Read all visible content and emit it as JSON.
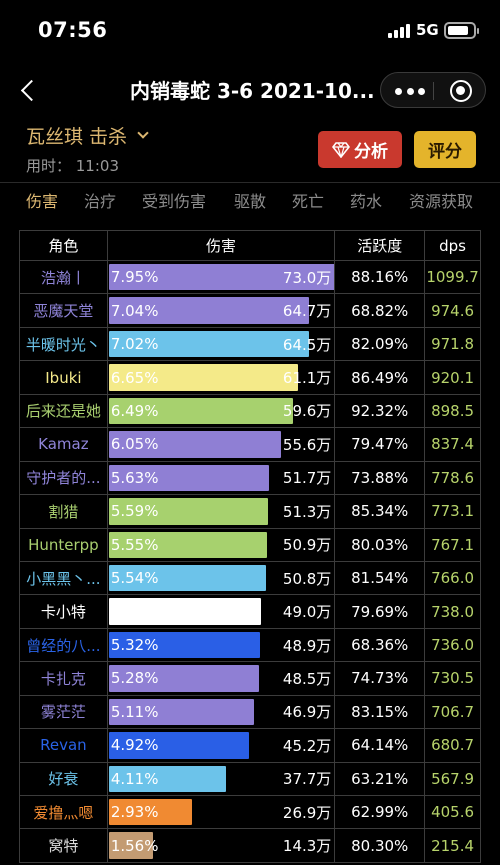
{
  "status_bar": {
    "time": "07:56",
    "network": "5G"
  },
  "nav": {
    "title": "内销毒蛇 3-6 2021-10..."
  },
  "player": {
    "name": "瓦丝琪 击杀",
    "elapsed": "用时： 11:03"
  },
  "buttons": {
    "analyze": "分析",
    "score": "评分"
  },
  "tabs": [
    "伤害",
    "治疗",
    "受到伤害",
    "驱散",
    "死亡",
    "药水",
    "资源获取"
  ],
  "table": {
    "headers": [
      "角色",
      "伤害",
      "活跃度",
      "dps"
    ],
    "max_share": 7.95,
    "rows": [
      {
        "role": "浩瀚丨",
        "role_color": "#8f84d8",
        "bar_color": "#8f7fd4",
        "pct": "7.95%",
        "share": 7.95,
        "amount": "73.0万",
        "activity": "88.16%",
        "dps": "1099.7"
      },
      {
        "role": "恶魔天堂",
        "role_color": "#8f84d8",
        "bar_color": "#8f7fd4",
        "pct": "7.04%",
        "share": 7.04,
        "amount": "64.7万",
        "activity": "68.82%",
        "dps": "974.6"
      },
      {
        "role": "半暖时光丶",
        "role_color": "#6cc3ea",
        "bar_color": "#6cc3ea",
        "pct": "7.02%",
        "share": 7.02,
        "amount": "64.5万",
        "activity": "82.09%",
        "dps": "971.8"
      },
      {
        "role": "Ibuki",
        "role_color": "#f4e98a",
        "bar_color": "#f4ea89",
        "pct": "6.65%",
        "share": 6.65,
        "amount": "61.1万",
        "activity": "86.49%",
        "dps": "920.1"
      },
      {
        "role": "后来还是她",
        "role_color": "#a9cf70",
        "bar_color": "#a7d16e",
        "pct": "6.49%",
        "share": 6.49,
        "amount": "59.6万",
        "activity": "92.32%",
        "dps": "898.5"
      },
      {
        "role": "Kamaz",
        "role_color": "#8f84d8",
        "bar_color": "#8f7fd4",
        "pct": "6.05%",
        "share": 6.05,
        "amount": "55.6万",
        "activity": "79.47%",
        "dps": "837.4"
      },
      {
        "role": "守护者的...",
        "role_color": "#8f84d8",
        "bar_color": "#8f7fd4",
        "pct": "5.63%",
        "share": 5.63,
        "amount": "51.7万",
        "activity": "73.88%",
        "dps": "778.6"
      },
      {
        "role": "割猎",
        "role_color": "#a9cf70",
        "bar_color": "#a7d16e",
        "pct": "5.59%",
        "share": 5.59,
        "amount": "51.3万",
        "activity": "85.34%",
        "dps": "773.1"
      },
      {
        "role": "Hunterpp",
        "role_color": "#a9cf70",
        "bar_color": "#a7d16e",
        "pct": "5.55%",
        "share": 5.55,
        "amount": "50.9万",
        "activity": "80.03%",
        "dps": "767.1"
      },
      {
        "role": "小黑黑丶...",
        "role_color": "#6cc3ea",
        "bar_color": "#6cc3ea",
        "pct": "5.54%",
        "share": 5.54,
        "amount": "50.8万",
        "activity": "81.54%",
        "dps": "766.0"
      },
      {
        "role": "卡小特",
        "role_color": "#ffffff",
        "bar_color": "#ffffff",
        "pct": "5.33%",
        "share": 5.33,
        "amount": "49.0万",
        "activity": "79.69%",
        "dps": "738.0"
      },
      {
        "role": "曾经的八...",
        "role_color": "#2a63e6",
        "bar_color": "#2a5fe6",
        "pct": "5.32%",
        "share": 5.32,
        "amount": "48.9万",
        "activity": "68.36%",
        "dps": "736.0"
      },
      {
        "role": "卡扎克",
        "role_color": "#8f84d8",
        "bar_color": "#8f7fd4",
        "pct": "5.28%",
        "share": 5.28,
        "amount": "48.5万",
        "activity": "74.73%",
        "dps": "730.5"
      },
      {
        "role": "雾茫茫",
        "role_color": "#8f84d8",
        "bar_color": "#8f7fd4",
        "pct": "5.11%",
        "share": 5.11,
        "amount": "46.9万",
        "activity": "83.15%",
        "dps": "706.7"
      },
      {
        "role": "Revan",
        "role_color": "#2a63e6",
        "bar_color": "#2a5fe6",
        "pct": "4.92%",
        "share": 4.92,
        "amount": "45.2万",
        "activity": "64.14%",
        "dps": "680.7"
      },
      {
        "role": "好衰",
        "role_color": "#6cc3ea",
        "bar_color": "#6cc3ea",
        "pct": "4.11%",
        "share": 4.11,
        "amount": "37.7万",
        "activity": "63.21%",
        "dps": "567.9"
      },
      {
        "role": "爱撸灬嗯",
        "role_color": "#f08a32",
        "bar_color": "#f08a32",
        "pct": "2.93%",
        "share": 2.93,
        "amount": "26.9万",
        "activity": "62.99%",
        "dps": "405.6"
      },
      {
        "role": "窝特",
        "role_color": "#d9d9d9",
        "bar_color": "#c39b72",
        "pct": "1.56%",
        "share": 1.56,
        "amount": "14.3万",
        "activity": "80.30%",
        "dps": "215.4"
      }
    ]
  }
}
